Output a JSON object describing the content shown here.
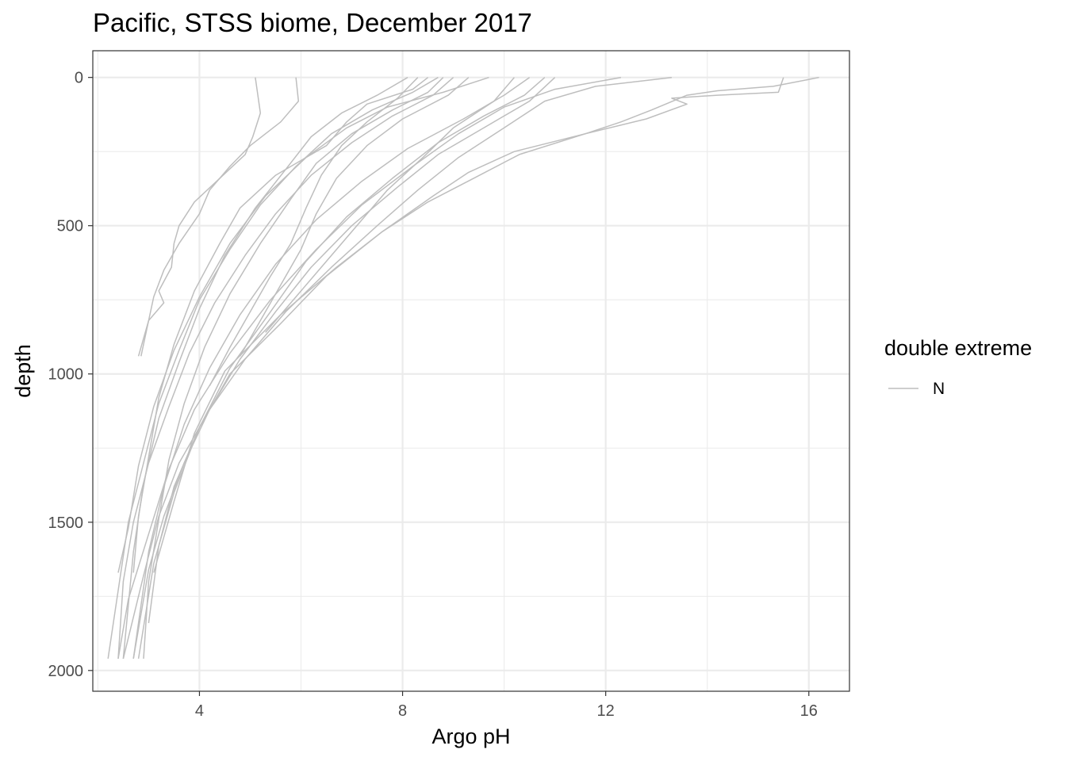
{
  "chart_data": {
    "type": "line",
    "title": "Pacific, STSS biome, December 2017",
    "xlabel": "Argo pH",
    "ylabel": "depth",
    "xlim": [
      1.9,
      16.8
    ],
    "ylim": [
      2070,
      -90
    ],
    "y_reversed": true,
    "x_major_ticks": [
      4,
      8,
      12,
      16
    ],
    "x_tick_labels": [
      "4",
      "8",
      "12",
      "16"
    ],
    "x_minor_ticks": [
      2,
      6,
      10,
      14
    ],
    "y_major_ticks": [
      0,
      500,
      1000,
      1500,
      2000
    ],
    "y_tick_labels": [
      "0",
      "500",
      "1000",
      "1500",
      "2000"
    ],
    "y_minor_ticks": [
      250,
      750,
      1250,
      1750
    ],
    "grid": true,
    "legend": {
      "title": "double extreme",
      "position": "right",
      "entries": [
        {
          "label": "N",
          "color": "#bebebe"
        }
      ]
    },
    "line_color": "#bebebe",
    "series": [
      {
        "x": [
          5.1,
          5.2,
          5.05,
          4.9,
          4.4,
          3.9,
          3.6,
          3.5,
          3.45,
          3.2,
          3.3,
          3.0,
          2.9,
          2.85
        ],
        "y": [
          0,
          120,
          200,
          260,
          340,
          420,
          500,
          560,
          640,
          720,
          760,
          820,
          900,
          940
        ]
      },
      {
        "x": [
          5.9,
          5.95,
          5.6,
          5.0,
          4.6,
          4.2,
          4.0,
          3.6,
          3.3,
          3.1,
          3.0,
          2.8
        ],
        "y": [
          0,
          80,
          150,
          230,
          300,
          380,
          460,
          560,
          650,
          740,
          820,
          940
        ]
      },
      {
        "x": [
          8.8,
          8.5,
          7.8,
          7.0,
          6.3,
          5.8,
          5.2,
          4.6,
          4.1,
          3.7,
          3.4,
          3.2,
          3.0,
          2.9
        ],
        "y": [
          0,
          50,
          110,
          190,
          290,
          410,
          560,
          730,
          910,
          1100,
          1290,
          1490,
          1700,
          1960
        ]
      },
      {
        "x": [
          8.1,
          7.5,
          6.8,
          6.2,
          5.7,
          5.1,
          4.5,
          4.0,
          3.6,
          3.2,
          2.9,
          2.7,
          2.5
        ],
        "y": [
          0,
          60,
          120,
          200,
          310,
          440,
          600,
          780,
          960,
          1150,
          1370,
          1600,
          1960
        ]
      },
      {
        "x": [
          10.8,
          10.4,
          9.6,
          8.7,
          7.8,
          6.9,
          6.1,
          5.4,
          4.6,
          4.0,
          3.5,
          3.1,
          2.8
        ],
        "y": [
          0,
          60,
          130,
          220,
          340,
          470,
          620,
          790,
          980,
          1180,
          1400,
          1640,
          1960
        ]
      },
      {
        "x": [
          12.3,
          11.0,
          10.0,
          9.1,
          8.2,
          7.2,
          6.3,
          5.4,
          4.6,
          3.9,
          3.4,
          3.0,
          2.6,
          2.4
        ],
        "y": [
          0,
          40,
          100,
          190,
          300,
          430,
          580,
          750,
          930,
          1120,
          1320,
          1540,
          1760,
          1960
        ]
      },
      {
        "x": [
          13.3,
          11.8,
          10.8,
          10.0,
          9.1,
          8.3,
          7.5,
          6.6,
          5.7,
          4.9,
          4.2,
          3.6,
          3.2,
          2.9,
          2.5
        ],
        "y": [
          0,
          30,
          80,
          170,
          270,
          380,
          500,
          640,
          790,
          950,
          1120,
          1300,
          1480,
          1680,
          1960
        ]
      },
      {
        "x": [
          15.5,
          15.4,
          14.2,
          13.3,
          13.6,
          12.8,
          11.6,
          10.2,
          9.3,
          8.6,
          7.6,
          6.5,
          5.6,
          4.6,
          4.0,
          3.5,
          3.2,
          3.0
        ],
        "y": [
          0,
          50,
          60,
          70,
          90,
          140,
          190,
          250,
          320,
          400,
          520,
          670,
          830,
          1000,
          1180,
          1380,
          1580,
          1840
        ]
      },
      {
        "x": [
          16.2,
          15.3,
          14.2,
          13.6,
          12.9,
          12.3,
          11.6,
          10.3,
          9.4,
          8.5,
          7.6,
          6.7,
          5.6,
          4.5,
          3.9,
          3.5,
          3.1
        ],
        "y": [
          0,
          30,
          45,
          60,
          110,
          150,
          190,
          260,
          340,
          420,
          520,
          640,
          800,
          990,
          1200,
          1430,
          1670
        ]
      },
      {
        "x": [
          9.7,
          8.8,
          7.7,
          6.9,
          6.1,
          5.3,
          4.6,
          4.0,
          3.5,
          3.1,
          2.8,
          2.6,
          2.4
        ],
        "y": [
          0,
          50,
          100,
          170,
          270,
          400,
          560,
          740,
          920,
          1110,
          1310,
          1520,
          1670
        ]
      },
      {
        "x": [
          8.5,
          8.2,
          7.3,
          6.9,
          6.5,
          5.5,
          4.8,
          4.4,
          3.9,
          3.5,
          3.2,
          3.0,
          2.8,
          2.7
        ],
        "y": [
          0,
          40,
          90,
          150,
          230,
          330,
          440,
          560,
          720,
          900,
          1080,
          1280,
          1480,
          1670
        ]
      },
      {
        "x": [
          10.5,
          10.0,
          9.2,
          8.1,
          7.2,
          6.3,
          5.5,
          4.8,
          4.2,
          3.7,
          3.3,
          3.0,
          2.7
        ],
        "y": [
          0,
          60,
          140,
          240,
          350,
          480,
          630,
          800,
          980,
          1170,
          1380,
          1600,
          1960
        ]
      },
      {
        "x": [
          11.0,
          10.5,
          9.7,
          8.7,
          7.9,
          7.0,
          6.2,
          5.5,
          4.8,
          4.2,
          3.7,
          3.3,
          3.0,
          2.7
        ],
        "y": [
          0,
          80,
          160,
          260,
          370,
          500,
          640,
          790,
          950,
          1120,
          1300,
          1480,
          1660,
          1960
        ]
      },
      {
        "x": [
          8.7,
          8.2,
          7.4,
          6.6,
          5.9,
          5.2,
          4.6,
          4.0,
          3.6,
          3.2,
          2.9,
          2.6,
          2.2
        ],
        "y": [
          0,
          50,
          110,
          190,
          300,
          430,
          580,
          750,
          920,
          1100,
          1300,
          1500,
          1960
        ]
      },
      {
        "x": [
          9.0,
          8.6,
          7.8,
          7.0,
          6.2,
          5.5,
          4.9,
          4.3,
          3.8,
          3.4,
          3.0,
          2.7,
          2.5,
          2.4
        ],
        "y": [
          0,
          60,
          130,
          220,
          330,
          460,
          600,
          760,
          930,
          1110,
          1300,
          1500,
          1700,
          1960
        ]
      },
      {
        "x": [
          8.3,
          7.9,
          7.3,
          6.8,
          6.4,
          6.1,
          5.8,
          5.4,
          5.0,
          4.6,
          4.2
        ],
        "y": [
          0,
          70,
          150,
          230,
          330,
          440,
          560,
          670,
          790,
          910,
          1040
        ]
      },
      {
        "x": [
          9.3,
          8.9,
          8.0,
          7.3,
          6.7,
          6.3,
          6.0,
          5.6,
          5.2,
          4.8
        ],
        "y": [
          0,
          60,
          140,
          230,
          340,
          460,
          580,
          700,
          820,
          940
        ]
      },
      {
        "x": [
          10.2,
          9.8,
          9.0,
          8.4,
          7.7,
          7.1,
          6.5,
          5.9,
          5.3
        ],
        "y": [
          0,
          80,
          170,
          270,
          380,
          500,
          620,
          740,
          860
        ]
      }
    ]
  }
}
